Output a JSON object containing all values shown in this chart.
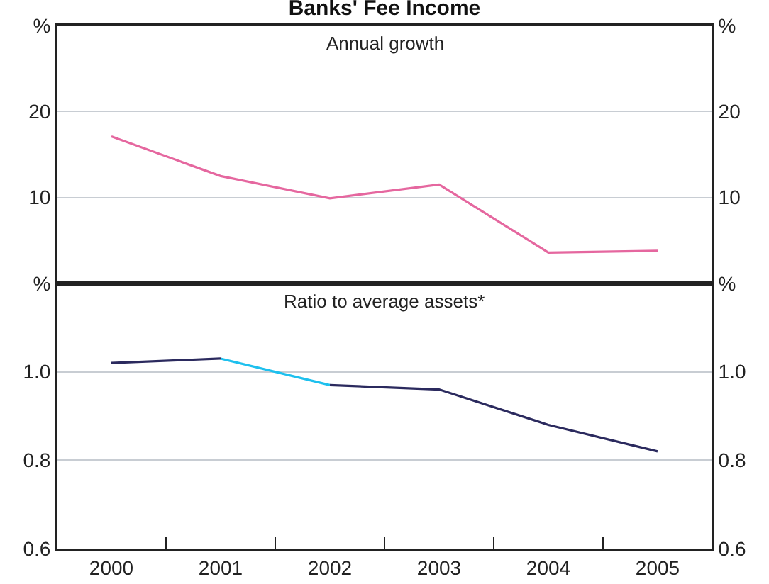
{
  "chart_data": [
    {
      "type": "line",
      "title": "Banks' Fee Income",
      "subtitle": "Annual growth",
      "categories": [
        "2000",
        "2001",
        "2002",
        "2003",
        "2004",
        "2005"
      ],
      "series": [
        {
          "color": "#e5679f",
          "values": [
            17.1,
            12.5,
            9.9,
            11.5,
            3.6,
            3.8
          ]
        }
      ],
      "ylim": [
        0,
        30
      ],
      "yticks": [
        10,
        20,
        {
          "value": 30,
          "label": "%"
        }
      ],
      "y2lim": [
        0,
        30
      ],
      "y2ticks": [
        10,
        20,
        {
          "value": 30,
          "label": "%"
        }
      ],
      "grid": "y",
      "tick_labels": "y"
    },
    {
      "type": "line",
      "subtitle": "Ratio to average assets*",
      "categories": [
        "2000",
        "2001",
        "2002",
        "2003",
        "2004",
        "2005"
      ],
      "series": [
        {
          "color": "#2b2a5e",
          "values": [
            1.02,
            1.03,
            null,
            null,
            null,
            null
          ]
        },
        {
          "color": "#1ec0ee",
          "values": [
            null,
            1.03,
            0.97,
            null,
            null,
            null
          ]
        },
        {
          "color": "#2b2a5e",
          "values": [
            null,
            null,
            0.97,
            0.96,
            0.88,
            0.82
          ]
        }
      ],
      "ylim": [
        0.6,
        1.2
      ],
      "yticks": [
        0.6,
        0.8,
        {
          "value": 1,
          "label": "1.0"
        },
        {
          "value": 1.2,
          "label": "%"
        }
      ],
      "y2lim": [
        0.6,
        1.2
      ],
      "y2ticks": [
        0.6,
        0.8,
        {
          "value": 1,
          "label": "1.0"
        },
        {
          "value": 1.2,
          "label": "%"
        }
      ],
      "grid": "y"
    }
  ]
}
